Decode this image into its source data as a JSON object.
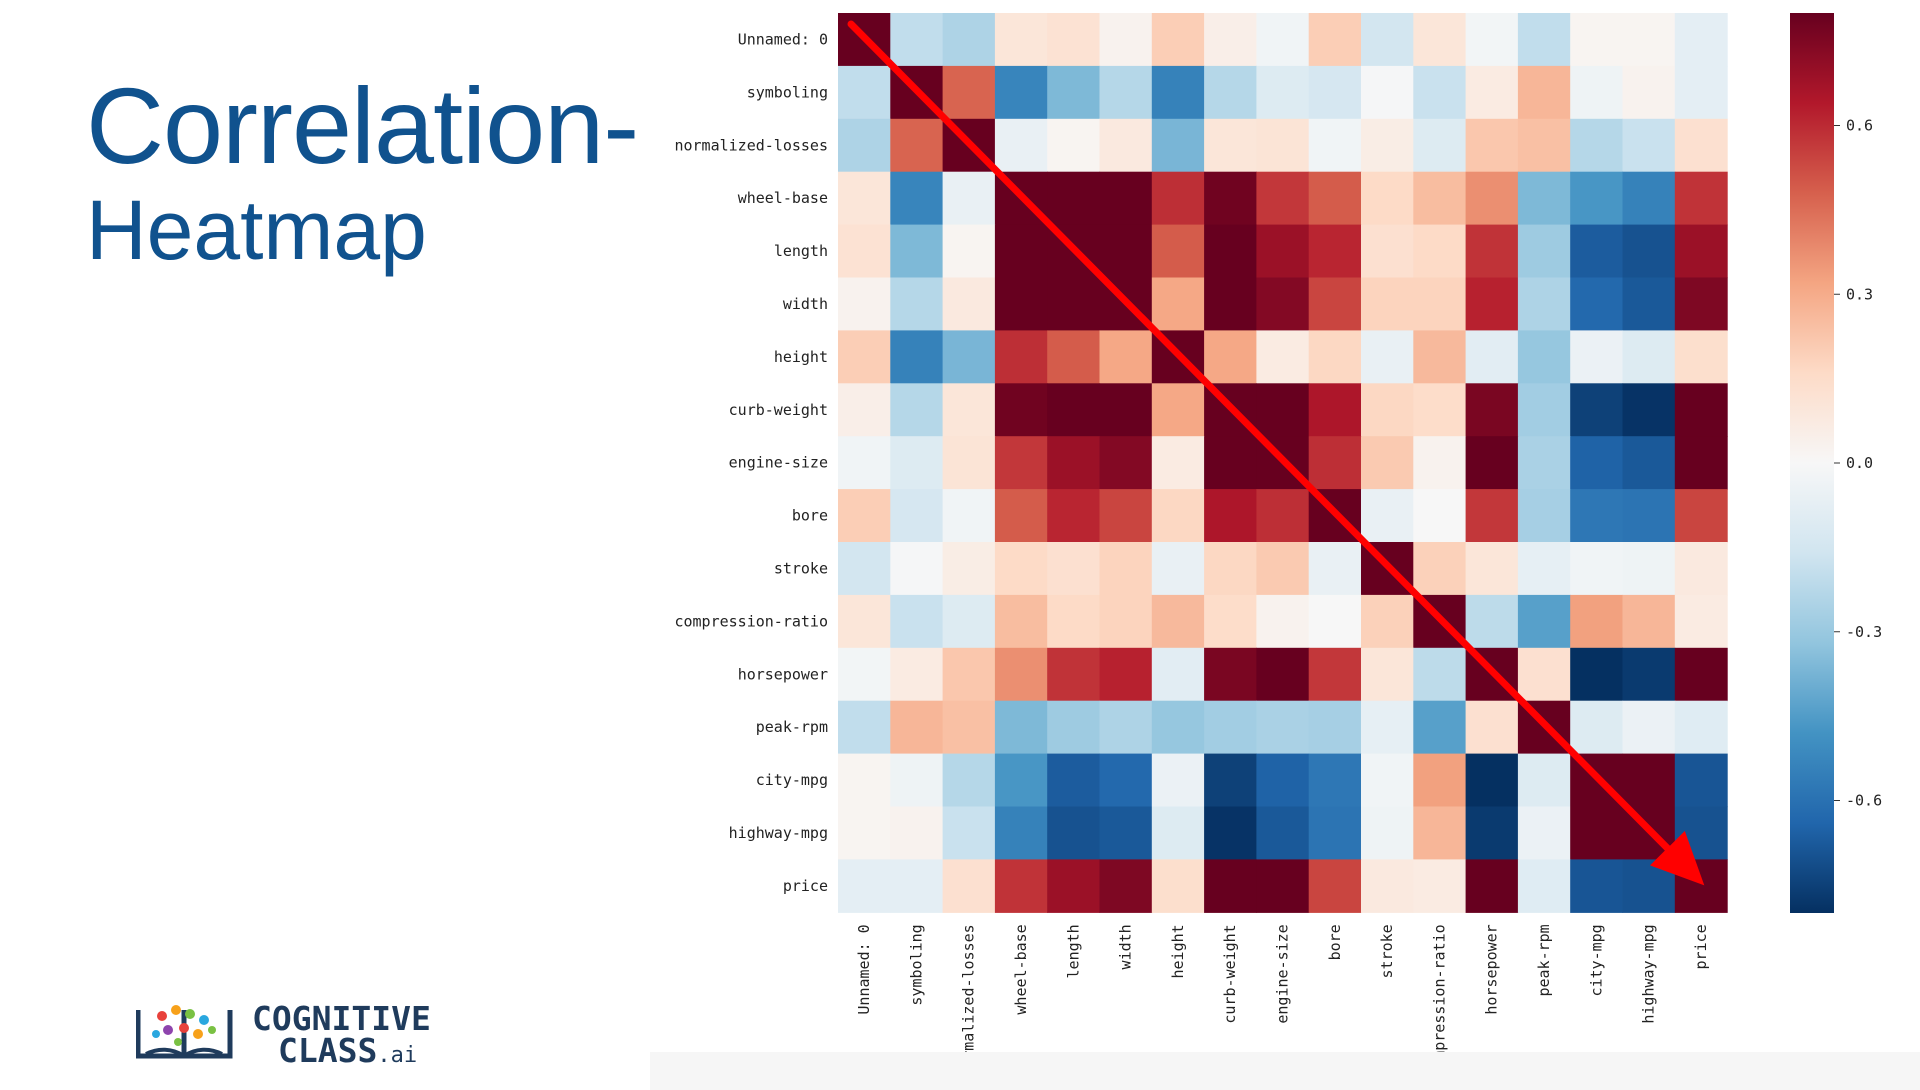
{
  "slide": {
    "title_line1": "Correlation-",
    "title_line2": "Heatmap",
    "logo": {
      "line1": "COGNITIVE",
      "line2": "CLASS",
      "suffix": ".ai"
    }
  },
  "chart_data": {
    "type": "heatmap",
    "title": "",
    "labels": [
      "Unnamed: 0",
      "symboling",
      "normalized-losses",
      "wheel-base",
      "length",
      "width",
      "height",
      "curb-weight",
      "engine-size",
      "bore",
      "stroke",
      "compression-ratio",
      "horsepower",
      "peak-rpm",
      "city-mpg",
      "highway-mpg",
      "price"
    ],
    "matrix": [
      [
        1.0,
        -0.2,
        -0.25,
        0.1,
        0.12,
        0.03,
        0.2,
        0.05,
        -0.03,
        0.2,
        -0.15,
        0.1,
        -0.02,
        -0.2,
        0.02,
        0.02,
        -0.08
      ],
      [
        -0.2,
        1.0,
        0.47,
        -0.53,
        -0.36,
        -0.23,
        -0.54,
        -0.23,
        -0.11,
        -0.14,
        -0.01,
        -0.18,
        0.07,
        0.27,
        -0.04,
        0.03,
        -0.08
      ],
      [
        -0.25,
        0.47,
        1.0,
        -0.06,
        0.02,
        0.08,
        -0.37,
        0.1,
        0.11,
        -0.03,
        0.06,
        -0.11,
        0.22,
        0.24,
        -0.23,
        -0.18,
        0.13
      ],
      [
        0.1,
        -0.53,
        -0.06,
        1.0,
        0.88,
        0.82,
        0.59,
        0.78,
        0.57,
        0.49,
        0.16,
        0.25,
        0.37,
        -0.36,
        -0.47,
        -0.54,
        0.58
      ],
      [
        0.12,
        -0.36,
        0.02,
        0.88,
        1.0,
        0.86,
        0.49,
        0.88,
        0.69,
        0.61,
        0.13,
        0.16,
        0.58,
        -0.29,
        -0.67,
        -0.7,
        0.69
      ],
      [
        0.03,
        -0.23,
        0.08,
        0.82,
        0.86,
        1.0,
        0.31,
        0.87,
        0.74,
        0.54,
        0.18,
        0.18,
        0.62,
        -0.25,
        -0.63,
        -0.68,
        0.75
      ],
      [
        0.2,
        -0.54,
        -0.37,
        0.59,
        0.49,
        0.31,
        1.0,
        0.31,
        0.07,
        0.17,
        -0.06,
        0.26,
        -0.09,
        -0.31,
        -0.05,
        -0.11,
        0.14
      ],
      [
        0.05,
        -0.23,
        0.1,
        0.78,
        0.88,
        0.87,
        0.31,
        1.0,
        0.85,
        0.65,
        0.17,
        0.15,
        0.76,
        -0.28,
        -0.75,
        -0.79,
        0.83
      ],
      [
        -0.03,
        -0.11,
        0.11,
        0.57,
        0.69,
        0.74,
        0.07,
        0.85,
        1.0,
        0.59,
        0.21,
        0.03,
        0.82,
        -0.26,
        -0.65,
        -0.68,
        0.87
      ],
      [
        0.2,
        -0.14,
        -0.03,
        0.49,
        0.61,
        0.54,
        0.17,
        0.65,
        0.59,
        1.0,
        -0.06,
        0.0,
        0.57,
        -0.27,
        -0.58,
        -0.59,
        0.54
      ],
      [
        -0.15,
        -0.01,
        0.06,
        0.16,
        0.13,
        0.18,
        -0.06,
        0.17,
        0.21,
        -0.06,
        1.0,
        0.19,
        0.1,
        -0.07,
        -0.03,
        -0.04,
        0.08
      ],
      [
        0.1,
        -0.18,
        -0.11,
        0.25,
        0.16,
        0.18,
        0.26,
        0.15,
        0.03,
        0.0,
        0.19,
        1.0,
        -0.21,
        -0.44,
        0.33,
        0.27,
        0.07
      ],
      [
        -0.02,
        0.07,
        0.22,
        0.37,
        0.58,
        0.62,
        -0.09,
        0.76,
        0.82,
        0.57,
        0.1,
        -0.21,
        1.0,
        0.13,
        -0.8,
        -0.77,
        0.81
      ],
      [
        -0.2,
        0.27,
        0.24,
        -0.36,
        -0.29,
        -0.25,
        -0.31,
        -0.28,
        -0.26,
        -0.27,
        -0.07,
        -0.44,
        0.13,
        1.0,
        -0.11,
        -0.05,
        -0.1
      ],
      [
        0.02,
        -0.04,
        -0.23,
        -0.47,
        -0.67,
        -0.63,
        -0.05,
        -0.75,
        -0.65,
        -0.58,
        -0.03,
        0.33,
        -0.8,
        -0.11,
        1.0,
        0.97,
        -0.69
      ],
      [
        0.02,
        0.03,
        -0.18,
        -0.54,
        -0.7,
        -0.68,
        -0.11,
        -0.79,
        -0.68,
        -0.59,
        -0.04,
        0.27,
        -0.77,
        -0.05,
        0.97,
        1.0,
        -0.7
      ],
      [
        -0.08,
        -0.08,
        0.13,
        0.58,
        0.69,
        0.75,
        0.14,
        0.83,
        0.87,
        0.54,
        0.08,
        0.07,
        0.81,
        -0.1,
        -0.69,
        -0.7,
        1.0
      ]
    ],
    "color_range": [
      -0.8,
      0.8
    ],
    "colormap": "RdBu_r",
    "colorbar_ticks": [
      "0.6",
      "0.3",
      "0.0",
      "-0.3",
      "-0.6"
    ],
    "colorbar_tick_values": [
      0.6,
      0.3,
      0.0,
      -0.3,
      -0.6
    ],
    "annotation_arrow_color": "#ff0000"
  }
}
